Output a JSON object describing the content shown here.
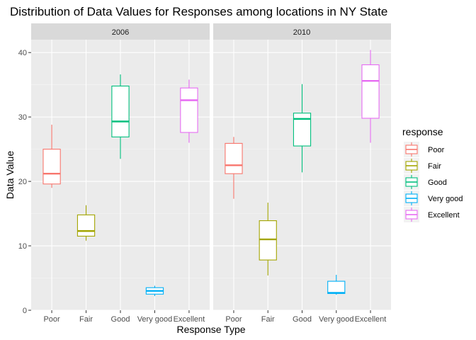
{
  "chart_data": {
    "type": "boxplot",
    "title": "Distribution of Data Values for Responses among locations in NY State",
    "xlabel": "Response Type",
    "ylabel": "Data Value",
    "ylim": [
      0,
      42
    ],
    "yticks": [
      0,
      10,
      20,
      30,
      40
    ],
    "grid": true,
    "categories": [
      "Poor",
      "Fair",
      "Good",
      "Very good",
      "Excellent"
    ],
    "legend": {
      "title": "response",
      "position": "right",
      "items": [
        {
          "label": "Poor",
          "color": "#F8766D"
        },
        {
          "label": "Fair",
          "color": "#A3A500"
        },
        {
          "label": "Good",
          "color": "#00BF7D"
        },
        {
          "label": "Very good",
          "color": "#00B0F6"
        },
        {
          "label": "Excellent",
          "color": "#E76BF3"
        }
      ]
    },
    "panels": [
      {
        "label": "2006",
        "boxes": [
          {
            "category": "Poor",
            "min": 19.0,
            "q1": 19.6,
            "median": 21.2,
            "q3": 25.0,
            "max": 28.8
          },
          {
            "category": "Fair",
            "min": 10.8,
            "q1": 11.5,
            "median": 12.3,
            "q3": 14.8,
            "max": 16.3
          },
          {
            "category": "Good",
            "min": 23.5,
            "q1": 26.9,
            "median": 29.3,
            "q3": 34.8,
            "max": 36.6
          },
          {
            "category": "Very good",
            "min": 2.2,
            "q1": 2.5,
            "median": 3.0,
            "q3": 3.5,
            "max": 3.8
          },
          {
            "category": "Excellent",
            "min": 26.0,
            "q1": 27.6,
            "median": 32.6,
            "q3": 34.5,
            "max": 35.8
          }
        ]
      },
      {
        "label": "2010",
        "boxes": [
          {
            "category": "Poor",
            "min": 17.3,
            "q1": 21.2,
            "median": 22.5,
            "q3": 25.9,
            "max": 26.9
          },
          {
            "category": "Fair",
            "min": 5.4,
            "q1": 7.8,
            "median": 11.0,
            "q3": 13.9,
            "max": 16.7
          },
          {
            "category": "Good",
            "min": 21.4,
            "q1": 25.5,
            "median": 29.7,
            "q3": 30.6,
            "max": 35.1
          },
          {
            "category": "Very good",
            "min": 2.4,
            "q1": 2.6,
            "median": 2.7,
            "q3": 4.5,
            "max": 5.5
          },
          {
            "category": "Excellent",
            "min": 26.0,
            "q1": 29.8,
            "median": 35.6,
            "q3": 38.1,
            "max": 40.4
          }
        ]
      }
    ]
  }
}
